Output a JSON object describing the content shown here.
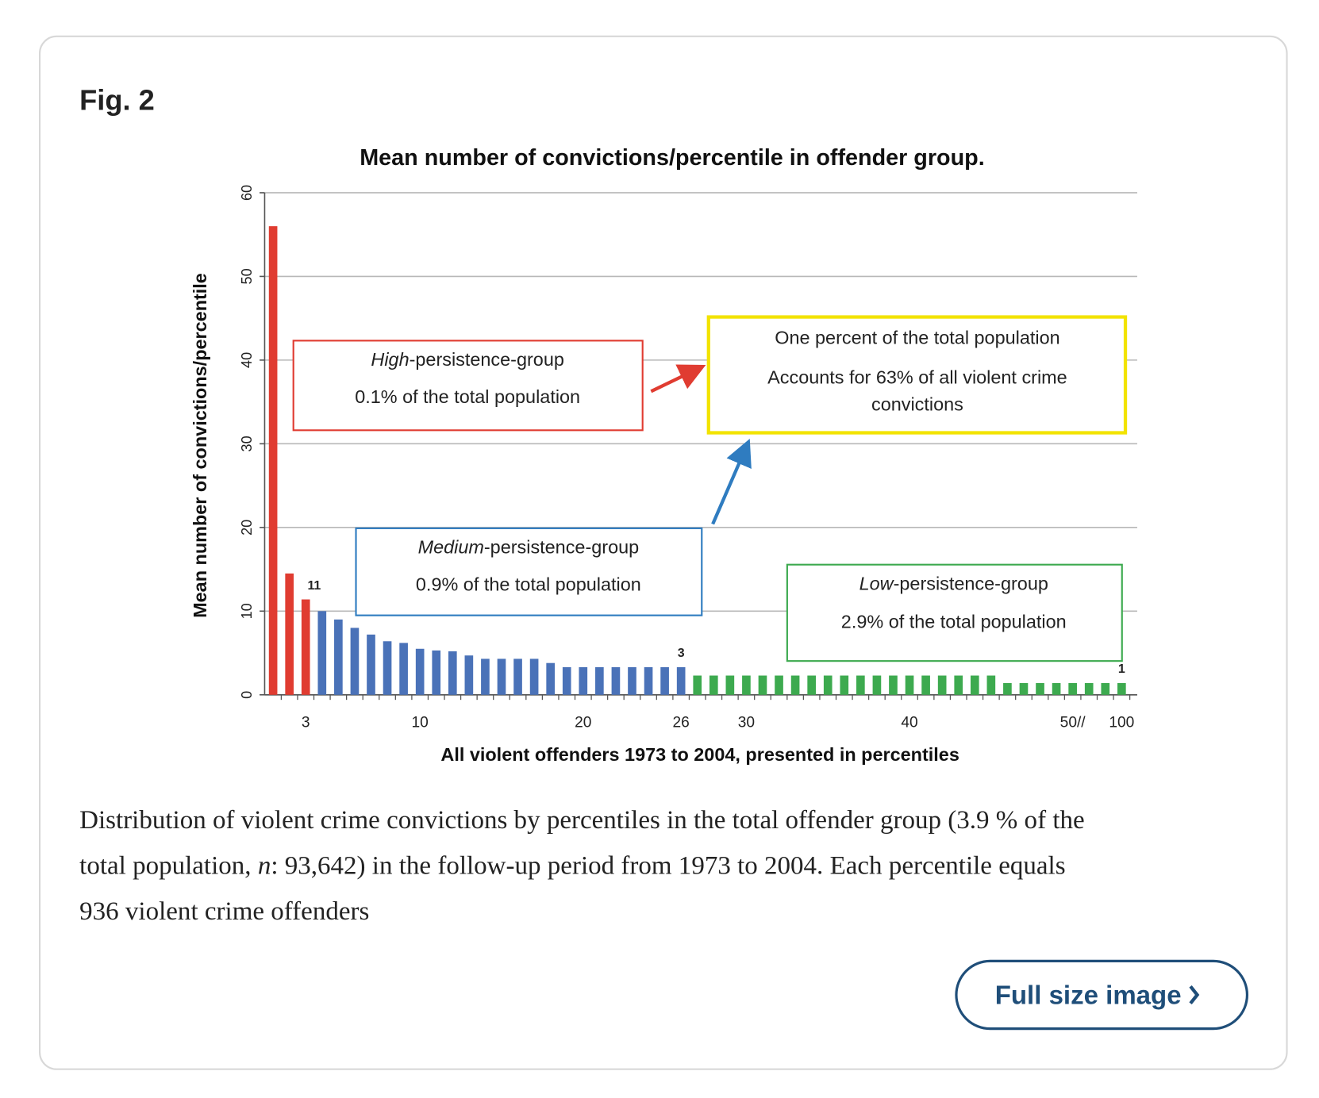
{
  "figure_label": "Fig. 2",
  "chart_data": {
    "type": "bar",
    "title": "Mean number of convictions/percentile in offender group.",
    "xlabel": "All violent offenders 1973 to 2004, presented in percentiles",
    "ylabel": "Mean number of convictions/percentile",
    "categories": [
      null,
      null,
      "3",
      null,
      null,
      null,
      null,
      null,
      null,
      "10",
      null,
      null,
      null,
      null,
      null,
      null,
      null,
      null,
      null,
      "20",
      null,
      null,
      null,
      null,
      null,
      "26",
      null,
      null,
      null,
      "30",
      null,
      null,
      null,
      null,
      null,
      null,
      null,
      null,
      null,
      "40",
      null,
      null,
      null,
      null,
      null,
      null,
      null,
      null,
      null,
      "50//",
      null,
      null,
      "100"
    ],
    "values": [
      56,
      14.5,
      11.4,
      10,
      9,
      8,
      7.2,
      6.4,
      6.2,
      5.5,
      5.3,
      5.2,
      4.7,
      4.3,
      4.3,
      4.3,
      4.3,
      3.8,
      3.3,
      3.3,
      3.3,
      3.3,
      3.3,
      3.3,
      3.3,
      3.3,
      2.3,
      2.3,
      2.3,
      2.3,
      2.3,
      2.3,
      2.3,
      2.3,
      2.3,
      2.3,
      2.3,
      2.3,
      2.3,
      2.3,
      2.3,
      2.3,
      2.3,
      2.3,
      2.3,
      1.4,
      1.4,
      1.4,
      1.4,
      1.4,
      1.4,
      1.4,
      1.4
    ],
    "value_labels": [
      null,
      null,
      "11",
      null,
      null,
      null,
      null,
      null,
      null,
      null,
      null,
      null,
      null,
      null,
      null,
      null,
      null,
      null,
      null,
      null,
      null,
      null,
      null,
      null,
      null,
      "3",
      null,
      null,
      null,
      null,
      null,
      null,
      null,
      null,
      null,
      null,
      null,
      null,
      null,
      null,
      null,
      null,
      null,
      null,
      null,
      null,
      null,
      null,
      null,
      null,
      null,
      null,
      "1"
    ],
    "colors": [
      "#e03c31",
      "#e03c31",
      "#e03c31",
      "#4a72b8",
      "#4a72b8",
      "#4a72b8",
      "#4a72b8",
      "#4a72b8",
      "#4a72b8",
      "#4a72b8",
      "#4a72b8",
      "#4a72b8",
      "#4a72b8",
      "#4a72b8",
      "#4a72b8",
      "#4a72b8",
      "#4a72b8",
      "#4a72b8",
      "#4a72b8",
      "#4a72b8",
      "#4a72b8",
      "#4a72b8",
      "#4a72b8",
      "#4a72b8",
      "#4a72b8",
      "#4a72b8",
      "#3daa4f",
      "#3daa4f",
      "#3daa4f",
      "#3daa4f",
      "#3daa4f",
      "#3daa4f",
      "#3daa4f",
      "#3daa4f",
      "#3daa4f",
      "#3daa4f",
      "#3daa4f",
      "#3daa4f",
      "#3daa4f",
      "#3daa4f",
      "#3daa4f",
      "#3daa4f",
      "#3daa4f",
      "#3daa4f",
      "#3daa4f",
      "#3daa4f",
      "#3daa4f",
      "#3daa4f",
      "#3daa4f",
      "#3daa4f",
      "#3daa4f",
      "#3daa4f",
      "#3daa4f"
    ],
    "ylim": [
      0,
      60
    ],
    "yticks": [
      0,
      10,
      20,
      30,
      40,
      50,
      60
    ],
    "grid": true,
    "annotations": [
      {
        "title_em": "High",
        "title_rest": "-persistence-group",
        "text": "0.1% of the total population"
      },
      {
        "title": "One percent of the total population",
        "lines": [
          "Accounts for 63% of all violent crime",
          "convictions"
        ]
      },
      {
        "title_em": "Medium",
        "title_rest": "-persistence-group",
        "text": "0.9% of the total population"
      },
      {
        "title_em": "Low",
        "title_rest": "-persistence-group",
        "text": "2.9% of the total population"
      }
    ]
  },
  "caption": [
    [
      "Distribution of violent crime convictions by percentiles in the total offender group (3.9 % of the"
    ],
    [
      "total population, ",
      "n",
      ": 93,642) in the follow-up period from 1973 to 2004. Each percentile equals"
    ],
    [
      "936 violent crime offenders"
    ]
  ],
  "button": "Full size image"
}
